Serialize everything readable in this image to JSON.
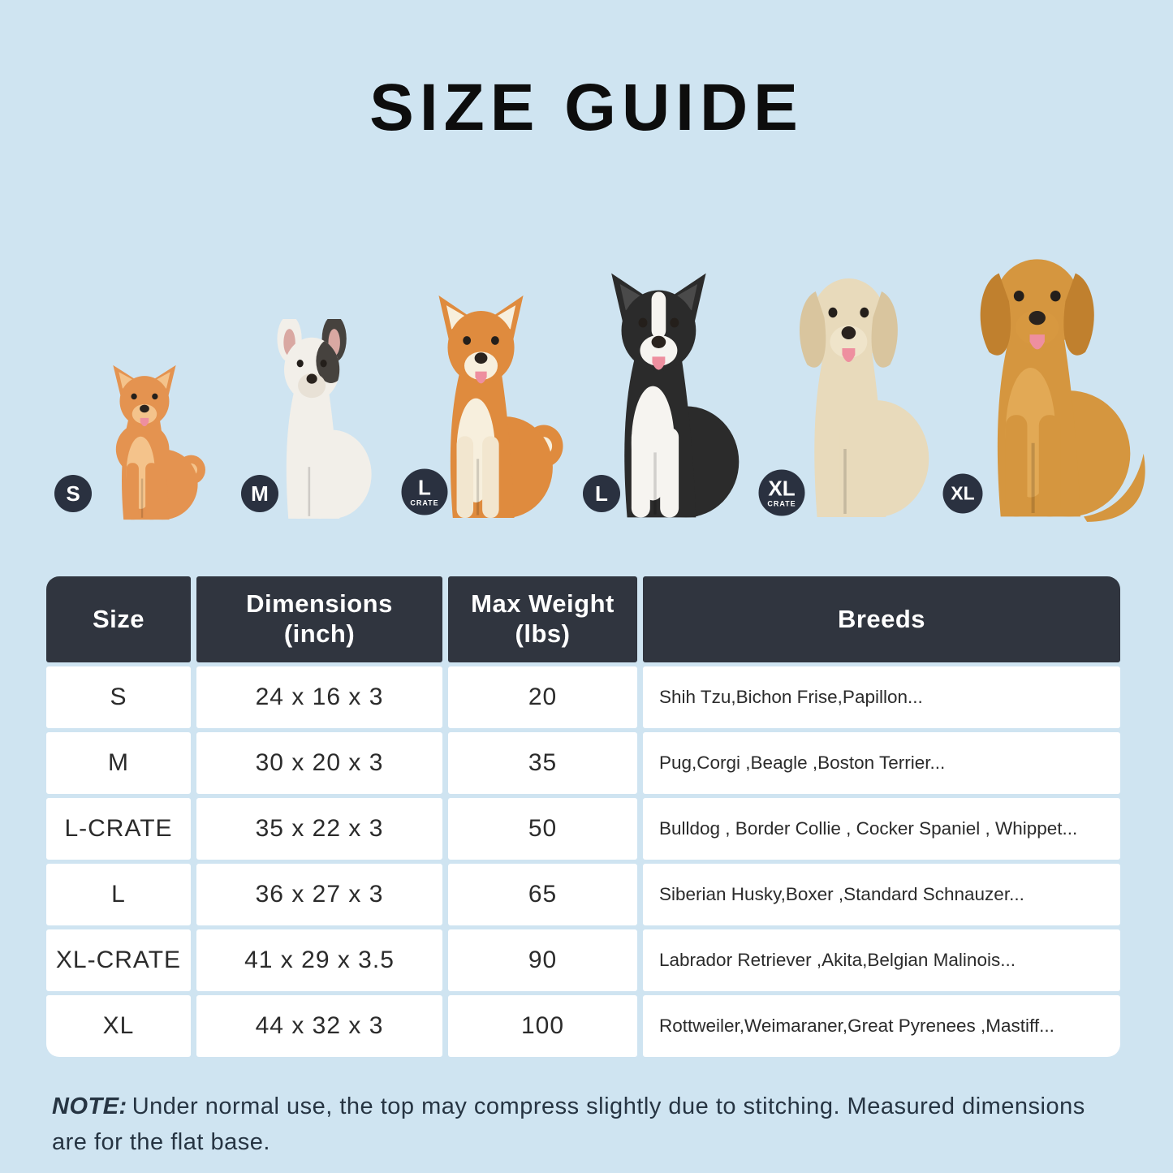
{
  "title": "SIZE GUIDE",
  "colors": {
    "background": "#cfe4f1",
    "title_text": "#0d0d0d",
    "table_header_bg": "#30353f",
    "table_header_text": "#ffffff",
    "cell_bg": "#ffffff",
    "cell_text": "#2b2b2b",
    "badge_bg": "#2a3140",
    "badge_text": "#ffffff",
    "note_text": "#263442"
  },
  "dogs": [
    {
      "breed": "pomeranian",
      "badge_label": "S",
      "badge_sub": "",
      "ears": "point",
      "tail": "curl",
      "tongue": true,
      "fluffy": true,
      "blaze": false,
      "colors": {
        "body": "#e49350",
        "chest": "#f4c38b",
        "ear": "#f4c38b",
        "muzzle": "#f4c38b",
        "legs": "#e49350"
      }
    },
    {
      "breed": "french-bulldog",
      "badge_label": "M",
      "badge_sub": "",
      "ears": "bat",
      "tail": "none",
      "tongue": false,
      "fluffy": false,
      "blaze": false,
      "colors": {
        "body": "#f2efe9",
        "chest": "",
        "ear": "#d9a8a2",
        "muzzle": "#e8e1d6",
        "legs": "#f2efe9",
        "patch": "#46423e"
      }
    },
    {
      "breed": "shiba-inu",
      "badge_label": "L",
      "badge_sub": "CRATE",
      "ears": "point",
      "tail": "curl",
      "tongue": true,
      "fluffy": false,
      "blaze": false,
      "colors": {
        "body": "#df8b3e",
        "chest": "#f7efdd",
        "ear": "#f7efdd",
        "muzzle": "#f7efdd",
        "legs": "#f2e6cf"
      }
    },
    {
      "breed": "border-collie",
      "badge_label": "L",
      "badge_sub": "",
      "ears": "point",
      "tail": "none",
      "tongue": true,
      "fluffy": false,
      "blaze": true,
      "colors": {
        "body": "#2b2b2b",
        "chest": "#f6f4f0",
        "ear": "#4a4a4a",
        "muzzle": "#f6f4f0",
        "legs": "#f6f4f0"
      }
    },
    {
      "breed": "labrador-retriever",
      "badge_label": "XL",
      "badge_sub": "CRATE",
      "ears": "floppy",
      "tail": "none",
      "tongue": true,
      "fluffy": false,
      "blaze": false,
      "colors": {
        "body": "#e8dabb",
        "chest": "",
        "ear": "#d9c59e",
        "muzzle": "#efe4ca",
        "legs": "#e8dabb"
      }
    },
    {
      "breed": "golden-retriever",
      "badge_label": "XL",
      "badge_sub": "",
      "ears": "floppy",
      "tail": "fluff",
      "tongue": true,
      "fluffy": false,
      "blaze": false,
      "colors": {
        "body": "#d5963f",
        "chest": "#e2a955",
        "ear": "#c0802e",
        "muzzle": "#d79840",
        "legs": "#d5963f"
      }
    }
  ],
  "table": {
    "headers": [
      "Size",
      "Dimensions\n(inch)",
      "Max Weight\n(lbs)",
      "Breeds"
    ],
    "rows": [
      {
        "size": "S",
        "dimensions": "24 x 16 x 3",
        "max_weight": "20",
        "breeds": "Shih Tzu,Bichon Frise,Papillon..."
      },
      {
        "size": "M",
        "dimensions": "30 x 20 x 3",
        "max_weight": "35",
        "breeds": "Pug,Corgi ,Beagle ,Boston Terrier..."
      },
      {
        "size": "L-CRATE",
        "dimensions": "35 x 22 x 3",
        "max_weight": "50",
        "breeds": "Bulldog , Border Collie , Cocker Spaniel , Whippet..."
      },
      {
        "size": "L",
        "dimensions": "36 x 27 x 3",
        "max_weight": "65",
        "breeds": "Siberian Husky,Boxer ,Standard Schnauzer..."
      },
      {
        "size": "XL-CRATE",
        "dimensions": "41 x 29 x 3.5",
        "max_weight": "90",
        "breeds": "Labrador Retriever ,Akita,Belgian Malinois..."
      },
      {
        "size": "XL",
        "dimensions": "44 x 32 x 3",
        "max_weight": "100",
        "breeds": "Rottweiler,Weimaraner,Great Pyrenees ,Mastiff..."
      }
    ]
  },
  "note": {
    "label": "NOTE:",
    "text": "Under normal use, the top may compress slightly due to stitching. Measured dimensions are for the flat base."
  }
}
